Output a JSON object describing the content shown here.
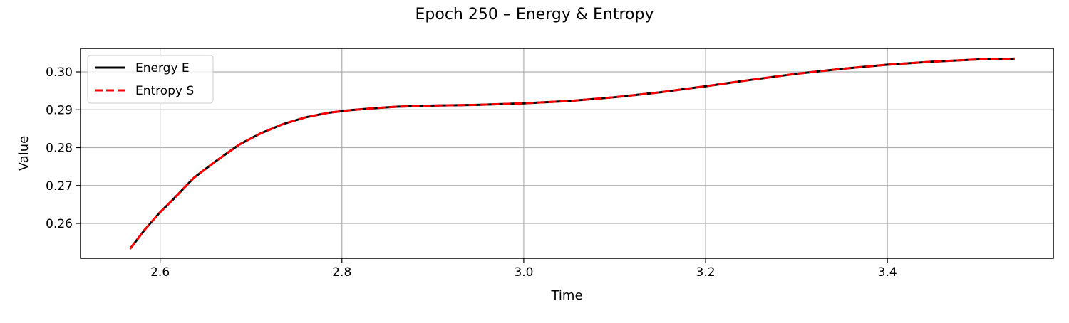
{
  "chart_data": {
    "type": "line",
    "title": "Epoch 250 – Energy & Entropy",
    "xlabel": "Time",
    "ylabel": "Value",
    "xlim": [
      2.5125,
      3.5825
    ],
    "ylim": [
      0.2508,
      0.3062
    ],
    "xticks": [
      2.6,
      2.8,
      3.0,
      3.2,
      3.4
    ],
    "xtick_labels": [
      "2.6",
      "2.8",
      "3.0",
      "3.2",
      "3.4"
    ],
    "yticks": [
      0.26,
      0.27,
      0.28,
      0.29,
      0.3
    ],
    "ytick_labels": [
      "0.26",
      "0.27",
      "0.28",
      "0.29",
      "0.30"
    ],
    "grid": true,
    "legend_position": "upper-left",
    "x": [
      2.567,
      2.583,
      2.599,
      2.615,
      2.637,
      2.66,
      2.687,
      2.71,
      2.735,
      2.76,
      2.785,
      2.81,
      2.835,
      2.86,
      2.9,
      2.95,
      3.0,
      3.05,
      3.1,
      3.15,
      3.2,
      3.25,
      3.3,
      3.35,
      3.4,
      3.45,
      3.5,
      3.54
    ],
    "series": [
      {
        "name": "Energy E",
        "color": "#000000",
        "style": "solid",
        "values": [
          0.2533,
          0.2583,
          0.2627,
          0.2665,
          0.272,
          0.2762,
          0.2808,
          0.2837,
          0.2862,
          0.288,
          0.2892,
          0.2899,
          0.2904,
          0.2908,
          0.2911,
          0.2913,
          0.2917,
          0.2923,
          0.2933,
          0.2946,
          0.2962,
          0.2979,
          0.2995,
          0.3008,
          0.3019,
          0.3027,
          0.3033,
          0.3035
        ]
      },
      {
        "name": "Entropy S",
        "color": "#ff0000",
        "style": "dashed",
        "values": [
          0.2533,
          0.2583,
          0.2627,
          0.2665,
          0.272,
          0.2762,
          0.2808,
          0.2837,
          0.2862,
          0.288,
          0.2892,
          0.2899,
          0.2904,
          0.2908,
          0.2911,
          0.2913,
          0.2917,
          0.2923,
          0.2933,
          0.2946,
          0.2962,
          0.2979,
          0.2995,
          0.3008,
          0.3019,
          0.3027,
          0.3033,
          0.3035
        ]
      }
    ]
  },
  "colors": {
    "grid": "#b0b0b0",
    "axes": "#000000",
    "legend_border": "#cccccc"
  }
}
